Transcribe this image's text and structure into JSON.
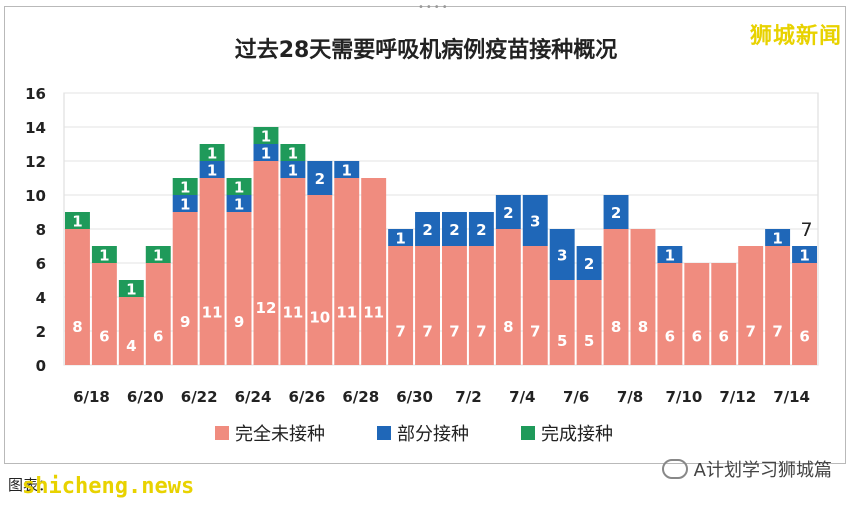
{
  "watermark": "狮城新闻",
  "source_label": "图表：",
  "site_watermark": "shicheng.news",
  "brand_text": "A计划学习狮城篇",
  "chart_data": {
    "type": "bar",
    "stacked": true,
    "title": "过去28天需要呼吸机病例疫苗接种概况",
    "ylim": [
      0,
      16
    ],
    "yticks": [
      0,
      2,
      4,
      6,
      8,
      10,
      12,
      14,
      16
    ],
    "categories": [
      "6/18",
      "6/19",
      "6/20",
      "6/21",
      "6/22",
      "6/23",
      "6/24",
      "6/25",
      "6/26",
      "6/27",
      "6/28",
      "6/29",
      "6/30",
      "7/1",
      "7/2",
      "7/3",
      "7/4",
      "7/5",
      "7/6",
      "7/7",
      "7/8",
      "7/9",
      "7/10",
      "7/11",
      "7/12",
      "7/13",
      "7/14",
      "7/15"
    ],
    "xtick_labels": [
      "6/18",
      "6/20",
      "6/22",
      "6/24",
      "6/26",
      "6/28",
      "6/30",
      "7/2",
      "7/4",
      "7/6",
      "7/8",
      "7/10",
      "7/12",
      "7/14"
    ],
    "series": [
      {
        "name": "完全未接种",
        "color": "#f08c7f",
        "values": [
          8,
          6,
          4,
          6,
          9,
          11,
          9,
          12,
          11,
          10,
          11,
          11,
          7,
          7,
          7,
          7,
          8,
          7,
          5,
          5,
          8,
          8,
          6,
          6,
          6,
          7,
          7,
          6
        ]
      },
      {
        "name": "部分接种",
        "color": "#1f67b8",
        "values": [
          0,
          0,
          0,
          0,
          1,
          1,
          1,
          1,
          1,
          2,
          1,
          0,
          1,
          2,
          2,
          2,
          2,
          3,
          3,
          2,
          2,
          0,
          1,
          0,
          0,
          0,
          1,
          1
        ]
      },
      {
        "name": "完成接种",
        "color": "#1f9a5a",
        "values": [
          1,
          1,
          1,
          1,
          1,
          1,
          1,
          1,
          1,
          0,
          0,
          0,
          0,
          0,
          0,
          0,
          0,
          0,
          0,
          0,
          0,
          0,
          0,
          0,
          0,
          0,
          0,
          0
        ]
      }
    ],
    "annotation": {
      "category": "7/15",
      "text": "7"
    },
    "legend_position": "bottom"
  }
}
